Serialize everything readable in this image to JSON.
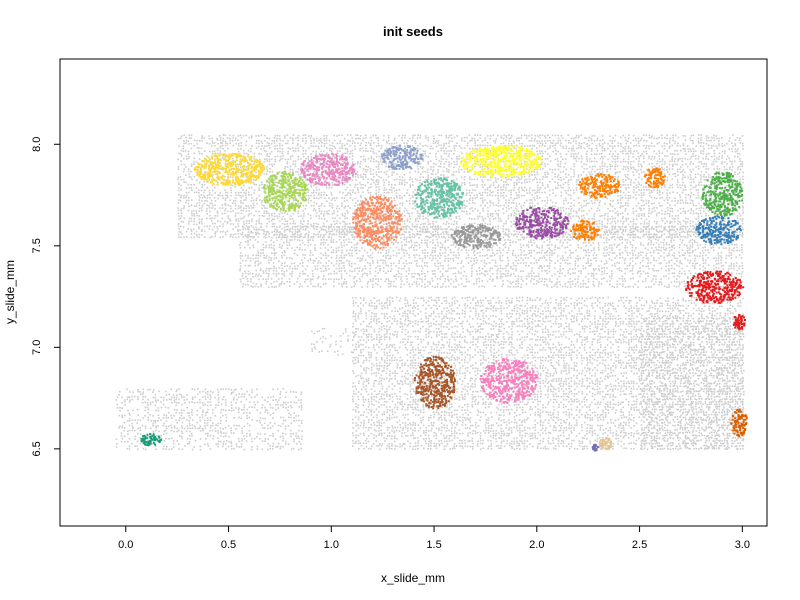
{
  "chart_data": {
    "type": "scatter",
    "title": "init seeds",
    "xlabel": "x_slide_mm",
    "ylabel": "y_slide_mm",
    "xlim": [
      -0.32,
      3.12
    ],
    "ylim": [
      6.12,
      8.42
    ],
    "x_ticks": [
      "0.0",
      "0.5",
      "1.0",
      "1.5",
      "2.0",
      "2.5",
      "3.0"
    ],
    "y_ticks": [
      "6.5",
      "7.0",
      "7.5",
      "8.0"
    ],
    "grid": false,
    "legend": "none",
    "background_color": "#cccccc",
    "background_regions": [
      {
        "x": [
          0.25,
          3.0
        ],
        "y": [
          7.55,
          8.05
        ],
        "density": 0.55
      },
      {
        "x": [
          0.55,
          3.0
        ],
        "y": [
          7.3,
          7.6
        ],
        "density": 0.5
      },
      {
        "x": [
          1.1,
          3.0
        ],
        "y": [
          6.5,
          7.25
        ],
        "density": 0.55
      },
      {
        "x": [
          -0.05,
          0.85
        ],
        "y": [
          6.5,
          6.8
        ],
        "density": 0.4
      },
      {
        "x": [
          2.5,
          3.0
        ],
        "y": [
          6.5,
          7.15
        ],
        "density": 0.45
      },
      {
        "x": [
          0.9,
          1.15
        ],
        "y": [
          6.95,
          7.1
        ],
        "density": 0.15
      }
    ],
    "series": [
      {
        "color": "#ffd92f",
        "cx": 0.5,
        "cy": 7.88,
        "rx": 0.17,
        "ry": 0.08
      },
      {
        "color": "#a6d854",
        "cx": 0.77,
        "cy": 7.77,
        "rx": 0.11,
        "ry": 0.1
      },
      {
        "color": "#e78ac3",
        "cx": 0.98,
        "cy": 7.88,
        "rx": 0.14,
        "ry": 0.08
      },
      {
        "color": "#fc8d62",
        "cx": 1.22,
        "cy": 7.62,
        "rx": 0.12,
        "ry": 0.13
      },
      {
        "color": "#8da0cb",
        "cx": 1.34,
        "cy": 7.94,
        "rx": 0.1,
        "ry": 0.06
      },
      {
        "color": "#66c2a5",
        "cx": 1.52,
        "cy": 7.74,
        "rx": 0.12,
        "ry": 0.1
      },
      {
        "color": "#ffff33",
        "cx": 1.82,
        "cy": 7.92,
        "rx": 0.2,
        "ry": 0.08
      },
      {
        "color": "#999999",
        "cx": 1.7,
        "cy": 7.55,
        "rx": 0.12,
        "ry": 0.06
      },
      {
        "color": "#984ea3",
        "cx": 2.02,
        "cy": 7.62,
        "rx": 0.13,
        "ry": 0.08
      },
      {
        "color": "#ff7f00",
        "cx": 2.3,
        "cy": 7.8,
        "rx": 0.1,
        "ry": 0.06
      },
      {
        "color": "#ff7f00",
        "cx": 2.23,
        "cy": 7.58,
        "rx": 0.07,
        "ry": 0.05
      },
      {
        "color": "#ff7f00",
        "cx": 2.57,
        "cy": 7.84,
        "rx": 0.05,
        "ry": 0.05
      },
      {
        "color": "#4daf4a",
        "cx": 2.9,
        "cy": 7.76,
        "rx": 0.1,
        "ry": 0.11
      },
      {
        "color": "#377eb8",
        "cx": 2.88,
        "cy": 7.58,
        "rx": 0.11,
        "ry": 0.07
      },
      {
        "color": "#e41a1c",
        "cx": 2.86,
        "cy": 7.3,
        "rx": 0.14,
        "ry": 0.08
      },
      {
        "color": "#e41a1c",
        "cx": 2.98,
        "cy": 7.13,
        "rx": 0.03,
        "ry": 0.04
      },
      {
        "color": "#a65628",
        "cx": 1.5,
        "cy": 6.83,
        "rx": 0.1,
        "ry": 0.13
      },
      {
        "color": "#f781bf",
        "cx": 1.86,
        "cy": 6.84,
        "rx": 0.14,
        "ry": 0.11
      },
      {
        "color": "#1b9e77",
        "cx": 0.12,
        "cy": 6.55,
        "rx": 0.05,
        "ry": 0.03
      },
      {
        "color": "#d95f02",
        "cx": 2.98,
        "cy": 6.63,
        "rx": 0.04,
        "ry": 0.07
      },
      {
        "color": "#e5c494",
        "cx": 2.33,
        "cy": 6.53,
        "rx": 0.03,
        "ry": 0.03
      },
      {
        "color": "#7570b3",
        "cx": 2.28,
        "cy": 6.51,
        "rx": 0.015,
        "ry": 0.015
      }
    ]
  }
}
